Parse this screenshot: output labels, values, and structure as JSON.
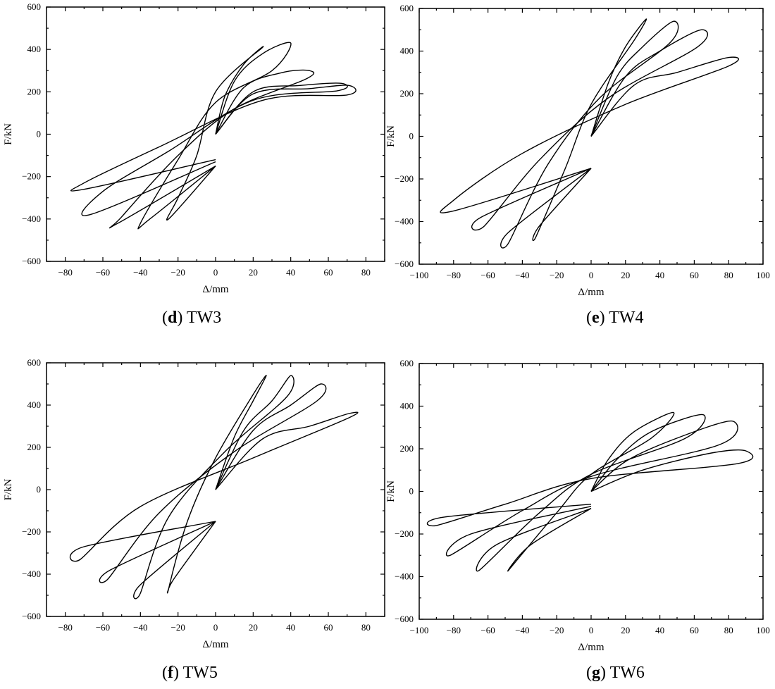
{
  "chart_data": [
    {
      "type": "line",
      "panel_label": "d",
      "panel_name": "TW3",
      "xlabel": "Δ/mm",
      "ylabel": "F/kN",
      "xlim": [
        -90,
        90
      ],
      "ylim": [
        -600,
        600
      ],
      "xticks": [
        -80,
        -60,
        -40,
        -20,
        0,
        20,
        40,
        60,
        80
      ],
      "yticks": [
        -600,
        -400,
        -200,
        0,
        200,
        400,
        600
      ],
      "grid": false,
      "series": [
        {
          "x": [
            0,
            5,
            15,
            25,
            0,
            -10,
            -20,
            -25,
            0
          ],
          "y": [
            0,
            180,
            330,
            410,
            200,
            -100,
            -300,
            -400,
            -150
          ]
        },
        {
          "x": [
            0,
            10,
            25,
            40,
            30,
            0,
            -20,
            -40,
            -35,
            0
          ],
          "y": [
            0,
            250,
            380,
            430,
            300,
            150,
            -120,
            -420,
            -400,
            -150
          ]
        },
        {
          "x": [
            0,
            15,
            35,
            50,
            48,
            10,
            -20,
            -50,
            -52,
            0
          ],
          "y": [
            0,
            220,
            290,
            300,
            260,
            120,
            -100,
            -390,
            -420,
            -150
          ]
        },
        {
          "x": [
            0,
            20,
            45,
            67,
            65,
            20,
            -25,
            -60,
            -67,
            0
          ],
          "y": [
            0,
            200,
            230,
            240,
            205,
            160,
            -80,
            -270,
            -380,
            -130
          ]
        },
        {
          "x": [
            0,
            20,
            50,
            71,
            70,
            25,
            -30,
            -70,
            -70,
            0
          ],
          "y": [
            0,
            190,
            215,
            230,
            185,
            160,
            -60,
            -230,
            -260,
            -120
          ]
        }
      ]
    },
    {
      "type": "line",
      "panel_label": "e",
      "panel_name": "TW4",
      "xlabel": "Δ/mm",
      "ylabel": "F/kN",
      "xlim": [
        -100,
        100
      ],
      "ylim": [
        -600,
        600
      ],
      "xticks": [
        -100,
        -80,
        -60,
        -40,
        -20,
        0,
        20,
        40,
        60,
        80,
        100
      ],
      "yticks": [
        -600,
        -400,
        -200,
        0,
        200,
        400,
        600
      ],
      "grid": false,
      "series": [
        {
          "x": [
            0,
            10,
            20,
            32,
            25,
            0,
            -15,
            -32,
            -30,
            0
          ],
          "y": [
            0,
            250,
            420,
            550,
            450,
            150,
            -150,
            -470,
            -420,
            -150
          ]
        },
        {
          "x": [
            0,
            15,
            30,
            48,
            46,
            5,
            -25,
            -48,
            -48,
            0
          ],
          "y": [
            0,
            280,
            420,
            540,
            440,
            180,
            -130,
            -500,
            -450,
            -150
          ]
        },
        {
          "x": [
            0,
            20,
            40,
            64,
            62,
            10,
            -30,
            -62,
            -64,
            0
          ],
          "y": [
            0,
            280,
            400,
            500,
            420,
            180,
            -110,
            -420,
            -380,
            -150
          ]
        },
        {
          "x": [
            0,
            25,
            50,
            80,
            80,
            20,
            -40,
            -80,
            -80,
            0
          ],
          "y": [
            0,
            240,
            300,
            370,
            330,
            150,
            -80,
            -300,
            -350,
            -150
          ]
        }
      ]
    },
    {
      "type": "line",
      "panel_label": "f",
      "panel_name": "TW5",
      "xlabel": "Δ/mm",
      "ylabel": "F/kN",
      "xlim": [
        -90,
        90
      ],
      "ylim": [
        -600,
        600
      ],
      "xticks": [
        -80,
        -60,
        -40,
        -20,
        0,
        20,
        40,
        60,
        80
      ],
      "yticks": [
        -600,
        -400,
        -200,
        0,
        200,
        400,
        600
      ],
      "grid": false,
      "series": [
        {
          "x": [
            0,
            10,
            20,
            27,
            20,
            0,
            -15,
            -25,
            -22,
            0
          ],
          "y": [
            0,
            250,
            420,
            540,
            450,
            150,
            -150,
            -470,
            -420,
            -150
          ]
        },
        {
          "x": [
            0,
            15,
            30,
            40,
            38,
            5,
            -25,
            -40,
            -40,
            0
          ],
          "y": [
            0,
            280,
            420,
            540,
            440,
            180,
            -130,
            -490,
            -450,
            -150
          ]
        },
        {
          "x": [
            0,
            20,
            40,
            56,
            54,
            10,
            -30,
            -57,
            -56,
            0
          ],
          "y": [
            0,
            280,
            400,
            500,
            420,
            180,
            -110,
            -420,
            -380,
            -150
          ]
        },
        {
          "x": [
            0,
            25,
            50,
            71,
            71,
            20,
            -40,
            -72,
            -70,
            0
          ],
          "y": [
            0,
            240,
            300,
            360,
            340,
            150,
            -80,
            -330,
            -270,
            -150
          ]
        }
      ]
    },
    {
      "type": "line",
      "panel_label": "g",
      "panel_name": "TW6",
      "xlabel": "Δ/mm",
      "ylabel": "F/kN",
      "xlim": [
        -100,
        100
      ],
      "ylim": [
        -600,
        600
      ],
      "xticks": [
        -100,
        -80,
        -60,
        -40,
        -20,
        0,
        20,
        40,
        60,
        80,
        100
      ],
      "yticks": [
        -600,
        -400,
        -200,
        0,
        200,
        400,
        600
      ],
      "grid": false,
      "series": [
        {
          "x": [
            0,
            10,
            25,
            48,
            35,
            0,
            -20,
            -48,
            -35,
            0
          ],
          "y": [
            0,
            150,
            280,
            370,
            250,
            80,
            -100,
            -370,
            -250,
            -80
          ]
        },
        {
          "x": [
            0,
            15,
            35,
            65,
            55,
            0,
            -30,
            -65,
            -55,
            0
          ],
          "y": [
            0,
            150,
            280,
            360,
            250,
            80,
            -100,
            -370,
            -250,
            -80
          ]
        },
        {
          "x": [
            0,
            20,
            50,
            82,
            75,
            0,
            -40,
            -82,
            -70,
            0
          ],
          "y": [
            0,
            140,
            250,
            330,
            220,
            70,
            -90,
            -300,
            -200,
            -70
          ]
        },
        {
          "x": [
            0,
            30,
            70,
            90,
            85,
            0,
            -50,
            -90,
            -85,
            0
          ],
          "y": [
            0,
            100,
            180,
            190,
            130,
            60,
            -60,
            -160,
            -120,
            -60
          ]
        }
      ]
    }
  ]
}
